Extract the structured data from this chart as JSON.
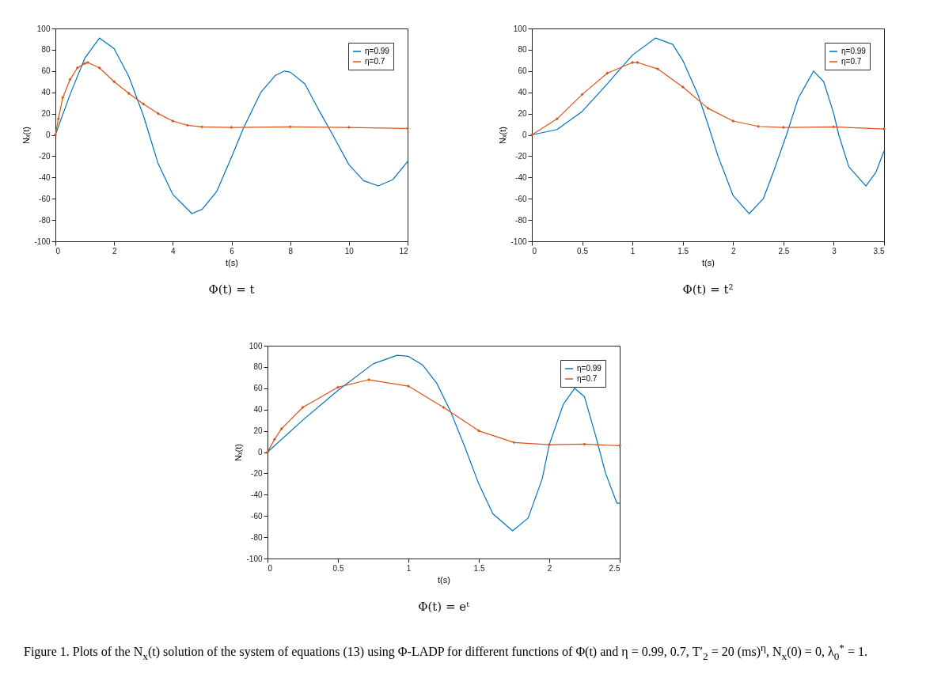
{
  "chart_data": [
    {
      "type": "line",
      "title": "Φ(t) = t",
      "xlabel": "t(s)",
      "ylabel": "Nₓ(t)",
      "xlim": [
        0,
        12
      ],
      "xticks": [
        0,
        2,
        4,
        6,
        8,
        10,
        12
      ],
      "ylim": [
        -100,
        100
      ],
      "yticks": [
        -100,
        -80,
        -60,
        -40,
        -20,
        0,
        20,
        40,
        60,
        80,
        100
      ],
      "legend": "top right",
      "grid": false,
      "series": [
        {
          "name": "η=0.99",
          "color": "#0072bd",
          "x": [
            0,
            0.5,
            1,
            1.5,
            2,
            2.5,
            3,
            3.2,
            3.5,
            4,
            4.65,
            5,
            5.5,
            6,
            6.4,
            7,
            7.5,
            7.8,
            8,
            8.5,
            9,
            9.45,
            10,
            10.5,
            11,
            11.5,
            12
          ],
          "values": [
            0,
            38,
            72,
            91,
            81,
            55,
            18,
            0,
            -27,
            -56,
            -74,
            -70,
            -53,
            -21,
            6,
            40,
            56,
            60,
            59,
            48,
            22,
            0,
            -28,
            -43,
            -48,
            -42,
            -25
          ]
        },
        {
          "name": "η=0.7",
          "color": "#d95319",
          "marker": "cross",
          "x": [
            0,
            0.1,
            0.25,
            0.5,
            0.75,
            1,
            1.1,
            1.5,
            2,
            2.5,
            3,
            3.5,
            4,
            4.5,
            5,
            6,
            8,
            10,
            12
          ],
          "values": [
            0,
            15,
            35,
            52,
            63,
            67,
            68,
            63,
            50,
            39,
            29,
            20,
            13,
            9,
            7.5,
            7,
            7.5,
            7,
            6
          ]
        }
      ]
    },
    {
      "type": "line",
      "title": "Φ(t) = t²",
      "xlabel": "t(s)",
      "ylabel": "Nₓ(t)",
      "xlim": [
        0,
        3.5
      ],
      "xticks": [
        0,
        0.5,
        1,
        1.5,
        2,
        2.5,
        3,
        3.5
      ],
      "ylim": [
        -100,
        100
      ],
      "yticks": [
        -100,
        -80,
        -60,
        -40,
        -20,
        0,
        20,
        40,
        60,
        80,
        100
      ],
      "legend": "top right",
      "grid": false,
      "series": [
        {
          "name": "η=0.99",
          "color": "#0072bd",
          "x": [
            0,
            0.25,
            0.5,
            0.75,
            1,
            1.23,
            1.4,
            1.5,
            1.65,
            1.75,
            1.85,
            2,
            2.16,
            2.3,
            2.4,
            2.53,
            2.65,
            2.8,
            2.9,
            3,
            3.05,
            3.15,
            3.32,
            3.42,
            3.5
          ],
          "values": [
            0,
            5,
            22,
            48,
            75,
            91,
            85,
            70,
            38,
            10,
            -20,
            -57,
            -74,
            -60,
            -35,
            0,
            35,
            60,
            50,
            20,
            0,
            -30,
            -48,
            -35,
            -15
          ]
        },
        {
          "name": "η=0.7",
          "color": "#d95319",
          "marker": "cross",
          "x": [
            0,
            0.25,
            0.5,
            0.75,
            1,
            1.05,
            1.25,
            1.5,
            1.75,
            2,
            2.25,
            2.5,
            3,
            3.5
          ],
          "values": [
            0,
            15,
            38,
            58,
            68,
            68,
            62,
            45,
            25,
            13,
            8,
            7,
            7.5,
            5.5
          ]
        }
      ]
    },
    {
      "type": "line",
      "title": "Φ(t) = eᵗ",
      "xlabel": "t(s)",
      "ylabel": "Nₓ(t)",
      "xlim": [
        0,
        2.5
      ],
      "xticks": [
        0,
        0.5,
        1,
        1.5,
        2,
        2.5
      ],
      "ylim": [
        -100,
        100
      ],
      "yticks": [
        -100,
        -80,
        -60,
        -40,
        -20,
        0,
        20,
        40,
        60,
        80,
        100
      ],
      "legend": "top right",
      "grid": false,
      "annotations": [
        "Figure 1. Plots of the N$_{x}$(t) solution of the system of equations (13) using Φ-LADP for different functions of Φ(t) and η = 0.99,  0.7, T′$_{2}$ = 20 (ms)$^{η}$, N$_{x}$(0) = 0, λ$_{0}$$^{*}$ = 1."
      ],
      "series": [
        {
          "name": "η=0.99",
          "color": "#0072bd",
          "x": [
            0,
            0.25,
            0.5,
            0.75,
            0.92,
            1,
            1.1,
            1.2,
            1.3,
            1.4,
            1.5,
            1.6,
            1.74,
            1.85,
            1.95,
            2,
            2.1,
            2.18,
            2.25,
            2.33,
            2.4,
            2.48,
            2.5
          ],
          "values": [
            0,
            30,
            58,
            83,
            91,
            90,
            82,
            65,
            38,
            5,
            -30,
            -58,
            -74,
            -62,
            -25,
            7,
            45,
            60,
            52,
            15,
            -20,
            -48,
            -48
          ]
        },
        {
          "name": "η=0.7",
          "color": "#d95319",
          "marker": "cross",
          "x": [
            0,
            0.05,
            0.1,
            0.25,
            0.5,
            0.72,
            1,
            1.25,
            1.5,
            1.75,
            2,
            2.25,
            2.5
          ],
          "values": [
            0,
            12,
            22,
            42,
            61,
            68,
            62,
            42,
            20,
            9,
            7,
            7.5,
            6
          ]
        }
      ]
    }
  ]
}
